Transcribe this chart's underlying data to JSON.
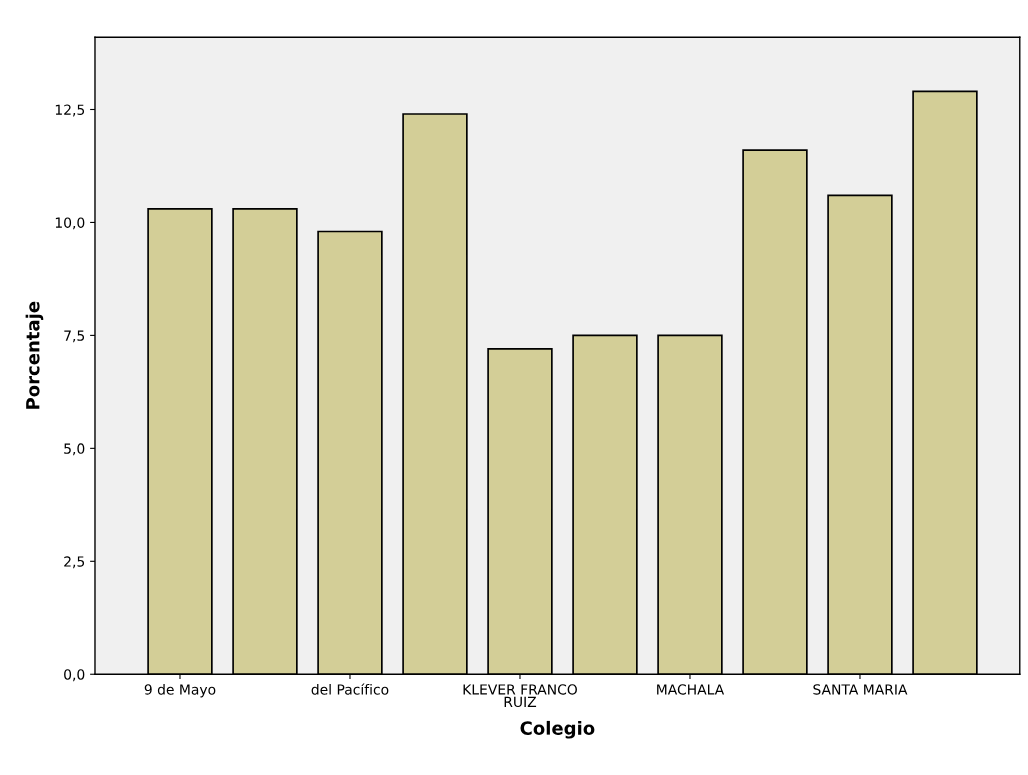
{
  "chart_data": {
    "type": "bar",
    "xlabel": "Colegio",
    "ylabel": "Porcentaje",
    "categories": [
      "9 de Mayo",
      null,
      "del Pacífico",
      null,
      "KLEVER FRANCO\nRUIZ",
      null,
      "MACHALA",
      null,
      "SANTA MARIA",
      null
    ],
    "values": [
      10.3,
      10.3,
      9.8,
      12.4,
      7.2,
      7.5,
      7.5,
      11.6,
      10.6,
      12.9
    ],
    "color": "#d3ce97",
    "ylim": [
      0,
      14.1
    ],
    "yticks": [
      {
        "value": 0,
        "label": "0,0"
      },
      {
        "value": 2.5,
        "label": "2,5"
      },
      {
        "value": 5,
        "label": "5,0"
      },
      {
        "value": 7.5,
        "label": "7,5"
      },
      {
        "value": 10,
        "label": "10,0"
      },
      {
        "value": 12.5,
        "label": "12,5"
      }
    ],
    "grid": false,
    "legend": false
  }
}
